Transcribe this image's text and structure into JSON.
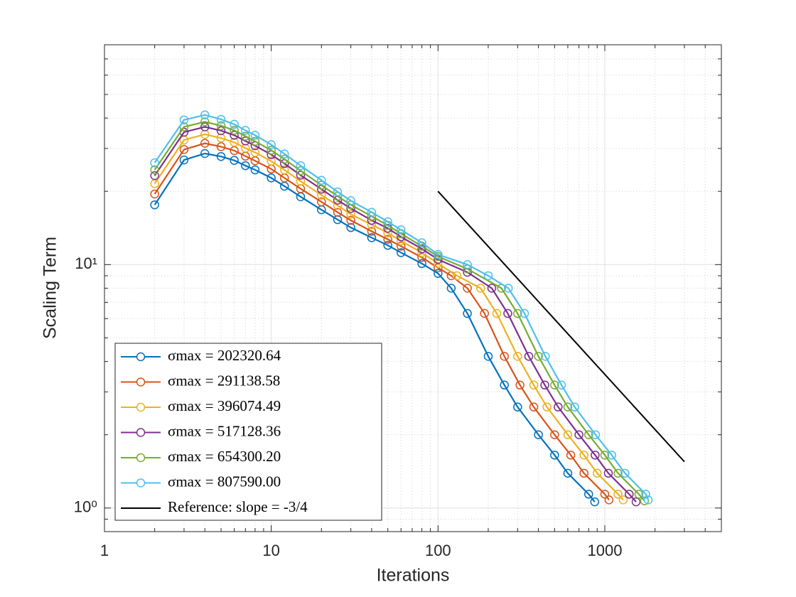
{
  "chart_data": {
    "type": "line",
    "xlabel": "Iterations",
    "ylabel": "Scaling Term",
    "xscale": "log",
    "yscale": "log",
    "xlim": [
      1,
      5000
    ],
    "ylim": [
      0.8,
      80
    ],
    "xticks": [
      1,
      10,
      100,
      1000
    ],
    "yticks": [
      {
        "value": 1,
        "label": "10⁰"
      },
      {
        "value": 10,
        "label": "10¹"
      }
    ],
    "xminor": [
      2,
      3,
      4,
      5,
      6,
      7,
      8,
      9,
      20,
      30,
      40,
      50,
      60,
      70,
      80,
      90,
      200,
      300,
      400,
      500,
      600,
      700,
      800,
      900,
      2000,
      3000,
      4000,
      5000
    ],
    "yminor": [
      0.8,
      0.9,
      2,
      3,
      4,
      5,
      6,
      7,
      8,
      9,
      20,
      30,
      40,
      50,
      60,
      70,
      80
    ],
    "grid": true,
    "legend": "southwest",
    "series": [
      {
        "name": "σmax = 202320.64",
        "color": "#0072BD",
        "marker": "circle",
        "x": [
          2,
          3,
          4,
          5,
          6,
          7,
          8,
          10,
          12,
          15,
          20,
          25,
          30,
          40,
          50,
          60,
          80,
          100,
          120,
          150,
          200,
          250,
          300,
          400,
          500,
          600,
          800,
          870
        ],
        "values": [
          17.6,
          26.9,
          28.6,
          27.8,
          26.8,
          25.5,
          24.5,
          22.7,
          21.0,
          19.0,
          16.8,
          15.3,
          14.2,
          12.9,
          12.0,
          11.2,
          10.1,
          9.2,
          8.0,
          6.3,
          4.2,
          3.2,
          2.6,
          2.0,
          1.65,
          1.39,
          1.14,
          1.06
        ]
      },
      {
        "name": "σmax = 291138.58",
        "color": "#D95319",
        "marker": "circle",
        "x": [
          2,
          3,
          4,
          5,
          6,
          7,
          8,
          10,
          12,
          15,
          20,
          25,
          30,
          40,
          50,
          60,
          80,
          100,
          120,
          150,
          190,
          250,
          310,
          375,
          500,
          625,
          750,
          1000,
          1060
        ],
        "values": [
          19.5,
          29.7,
          31.5,
          30.5,
          29.4,
          27.9,
          26.7,
          24.7,
          22.7,
          20.5,
          18.1,
          16.4,
          15.2,
          13.7,
          12.7,
          11.9,
          10.7,
          9.7,
          9.0,
          8.0,
          6.3,
          4.2,
          3.2,
          2.6,
          2.0,
          1.65,
          1.39,
          1.14,
          1.08
        ]
      },
      {
        "name": "σmax = 396074.49",
        "color": "#EDB120",
        "marker": "circle",
        "x": [
          2,
          3,
          4,
          5,
          6,
          7,
          8,
          10,
          12,
          15,
          20,
          25,
          30,
          40,
          50,
          60,
          80,
          100,
          130,
          180,
          225,
          300,
          375,
          450,
          600,
          750,
          900,
          1200,
          1290
        ],
        "values": [
          21.5,
          32.5,
          34.3,
          33.1,
          31.8,
          30.1,
          28.9,
          26.6,
          24.5,
          22.0,
          19.3,
          17.5,
          16.1,
          14.6,
          13.5,
          12.5,
          11.2,
          10.1,
          9.0,
          8.0,
          6.3,
          4.2,
          3.2,
          2.6,
          2.0,
          1.65,
          1.39,
          1.14,
          1.08
        ]
      },
      {
        "name": "σmax = 517128.36",
        "color": "#7E2F8E",
        "marker": "circle",
        "x": [
          2,
          3,
          4,
          5,
          6,
          7,
          8,
          10,
          12,
          15,
          20,
          25,
          30,
          40,
          50,
          60,
          80,
          100,
          150,
          210,
          262,
          350,
          437,
          525,
          700,
          875,
          1050,
          1400,
          1540
        ],
        "values": [
          23.2,
          35.0,
          36.8,
          35.5,
          34.0,
          32.2,
          30.8,
          28.3,
          26.0,
          23.3,
          20.4,
          18.4,
          17.0,
          15.2,
          14.1,
          13.0,
          11.6,
          10.5,
          9.3,
          8.0,
          6.3,
          4.2,
          3.2,
          2.6,
          2.0,
          1.65,
          1.39,
          1.14,
          1.06
        ]
      },
      {
        "name": "σmax = 654300.20",
        "color": "#77AC30",
        "marker": "circle",
        "x": [
          2,
          3,
          4,
          5,
          6,
          7,
          8,
          10,
          12,
          15,
          20,
          25,
          30,
          40,
          50,
          60,
          80,
          100,
          150,
          240,
          300,
          400,
          500,
          600,
          800,
          1000,
          1200,
          1600,
          1730
        ],
        "values": [
          24.5,
          36.8,
          38.6,
          37.2,
          35.6,
          33.7,
          32.1,
          29.5,
          27.1,
          24.3,
          21.2,
          19.1,
          17.6,
          15.8,
          14.5,
          13.4,
          11.9,
          10.8,
          9.6,
          8.0,
          6.3,
          4.2,
          3.2,
          2.6,
          2.0,
          1.65,
          1.39,
          1.14,
          1.07
        ]
      },
      {
        "name": "σmax = 807590.00",
        "color": "#4DBEEE",
        "marker": "circle",
        "x": [
          2,
          3,
          4,
          5,
          6,
          7,
          8,
          10,
          12,
          15,
          20,
          25,
          30,
          40,
          50,
          60,
          80,
          100,
          150,
          200,
          264,
          330,
          440,
          550,
          660,
          880,
          1100,
          1320,
          1760,
          1820
        ],
        "values": [
          26.2,
          39.3,
          41.2,
          39.5,
          37.7,
          35.6,
          34.0,
          31.1,
          28.5,
          25.5,
          22.2,
          19.9,
          18.3,
          16.4,
          15.0,
          13.9,
          12.3,
          11.0,
          10.0,
          9.0,
          8.0,
          6.3,
          4.2,
          3.2,
          2.6,
          2.0,
          1.65,
          1.39,
          1.14,
          1.08
        ]
      },
      {
        "name": "Reference: slope = -3/4",
        "color": "#000000",
        "marker": "none",
        "x": [
          100,
          3000
        ],
        "values": [
          20,
          1.55
        ]
      }
    ]
  }
}
